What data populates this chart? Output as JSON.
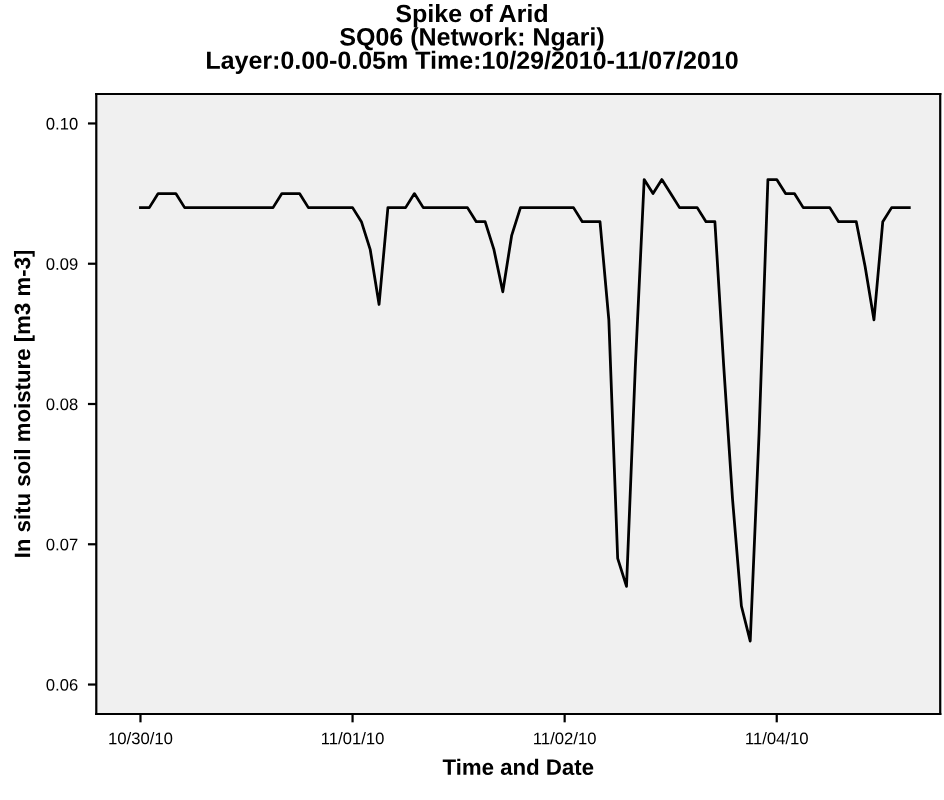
{
  "chart_data": {
    "type": "line",
    "title": "Spike of Arid",
    "subtitle": "SQ06 (Network: Ngari)\nLayer:0.00-0.05m Time:10/29/2010-11/07/2010",
    "xlabel": "Time and Date",
    "ylabel": "In situ soil moisture [m3 m-3]",
    "categories": [
      "10/30/10",
      null,
      null,
      null,
      null,
      null,
      null,
      null,
      null,
      null,
      null,
      null,
      null,
      null,
      null,
      null,
      null,
      null,
      null,
      null,
      null,
      null,
      null,
      null,
      "11/01/10",
      null,
      null,
      null,
      null,
      null,
      null,
      null,
      null,
      null,
      null,
      null,
      null,
      null,
      null,
      null,
      null,
      null,
      null,
      null,
      null,
      null,
      null,
      null,
      "11/02/10",
      null,
      null,
      null,
      null,
      null,
      null,
      null,
      null,
      null,
      null,
      null,
      null,
      null,
      null,
      null,
      null,
      null,
      null,
      null,
      null,
      null,
      null,
      null,
      "11/04/10",
      null,
      null,
      null,
      null,
      null,
      null,
      null,
      null,
      null,
      null,
      null,
      null,
      null,
      null,
      null
    ],
    "series": [
      {
        "color": "#000000",
        "values": [
          0.094,
          0.094,
          0.095,
          0.095,
          0.095,
          0.094,
          0.094,
          0.094,
          0.094,
          0.094,
          0.094,
          0.094,
          0.094,
          0.094,
          0.094,
          0.094,
          0.095,
          0.095,
          0.095,
          0.094,
          0.094,
          0.094,
          0.094,
          0.094,
          0.094,
          0.093,
          0.091,
          0.0871,
          0.094,
          0.094,
          0.094,
          0.095,
          0.094,
          0.094,
          0.094,
          0.094,
          0.094,
          0.094,
          0.093,
          0.093,
          0.091,
          0.088,
          0.092,
          0.094,
          0.094,
          0.094,
          0.094,
          0.094,
          0.094,
          0.094,
          0.093,
          0.093,
          0.093,
          0.086,
          0.069,
          0.067,
          0.0827,
          0.096,
          0.095,
          0.096,
          0.095,
          0.094,
          0.094,
          0.094,
          0.093,
          0.093,
          0.0827,
          0.0732,
          0.0656,
          0.0631,
          0.0779,
          0.096,
          0.096,
          0.095,
          0.095,
          0.094,
          0.094,
          0.094,
          0.094,
          0.093,
          0.093,
          0.093,
          0.0898,
          0.086,
          0.093,
          0.094,
          0.094,
          0.094
        ]
      }
    ],
    "ylim": [
      0.0579,
      0.1021
    ],
    "yticks": [
      {
        "value": 0.06,
        "label": "0.06"
      },
      {
        "value": 0.07,
        "label": "0.07"
      },
      {
        "value": 0.08,
        "label": "0.08"
      },
      {
        "value": 0.09,
        "label": "0.09"
      },
      {
        "value": 0.1,
        "label": "0.10"
      }
    ],
    "grid": false,
    "legend": false,
    "marker": "none",
    "line_style": "solid"
  }
}
